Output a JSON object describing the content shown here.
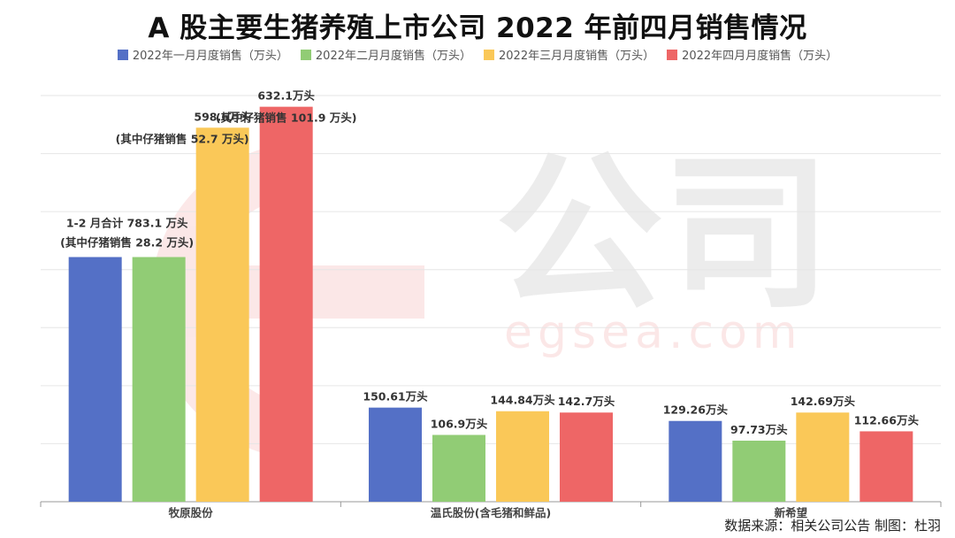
{
  "title": "A 股主要生猪养殖上市公司 2022 年前四月销售情况",
  "source": "数据来源：相关公司公告  制图：杜羽",
  "watermark": {
    "big_text": "公司",
    "small_text": "egsea.com"
  },
  "colors": {
    "m1": "#5470c6",
    "m2": "#91cc75",
    "m3": "#fac858",
    "m4": "#ee6666"
  },
  "chart_data": {
    "type": "bar",
    "title": "A 股主要生猪养殖上市公司 2022 年前四月销售情况",
    "xlabel": "",
    "ylabel": "",
    "ylim": [
      0,
      650
    ],
    "grid": true,
    "legend_position": "top",
    "categories": [
      "牧原股份",
      "温氏股份(含毛猪和鲜品)",
      "新希望"
    ],
    "series": [
      {
        "name": "2022年一月月度销售（万头）",
        "color": "#5470c6",
        "values": [
          391.55,
          150.61,
          129.26
        ],
        "labels": [
          "",
          "150.61万头",
          "129.26万头"
        ]
      },
      {
        "name": "2022年二月月度销售（万头）",
        "color": "#91cc75",
        "values": [
          391.55,
          106.9,
          97.73
        ],
        "labels": [
          "",
          "106.9万头",
          "97.73万头"
        ]
      },
      {
        "name": "2022年三月月度销售（万头）",
        "color": "#fac858",
        "values": [
          598.6,
          144.84,
          142.69
        ],
        "labels": [
          "598.6万头",
          "144.84万头",
          "142.69万头"
        ]
      },
      {
        "name": "2022年四月月度销售（万头）",
        "color": "#ee6666",
        "values": [
          632.1,
          142.7,
          112.66
        ],
        "labels": [
          "632.1万头",
          "142.7万头",
          "112.66万头"
        ]
      }
    ],
    "annotations": [
      {
        "text": "1-2 月合计 783.1 万头",
        "category": "牧原股份",
        "anchor": "months-1-2"
      },
      {
        "text": "(其中仔猪销售 28.2 万头)",
        "category": "牧原股份",
        "anchor": "months-1-2"
      },
      {
        "text": "(其中仔猪销售 52.7 万头)",
        "category": "牧原股份",
        "anchor": "month-3"
      },
      {
        "text": "(其中仔猪销售 101.9 万头)",
        "category": "牧原股份",
        "anchor": "month-4"
      }
    ]
  }
}
